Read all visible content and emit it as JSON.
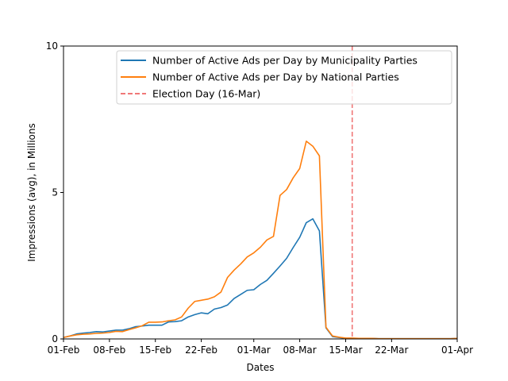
{
  "chart_data": {
    "type": "line",
    "title": "",
    "xlabel": "Dates",
    "ylabel": "Impressions (avg), in Millions",
    "xlim": [
      "2024-02-01",
      "2024-04-01"
    ],
    "ylim": [
      0,
      10
    ],
    "x_ticks": [
      "01-Feb",
      "08-Feb",
      "15-Feb",
      "22-Feb",
      "01-Mar",
      "08-Mar",
      "15-Mar",
      "22-Mar",
      "01-Apr"
    ],
    "y_ticks": [
      "0",
      "5",
      "10"
    ],
    "grid": false,
    "legend_position": "top-right",
    "x": [
      "2024-02-01",
      "2024-02-02",
      "2024-02-03",
      "2024-02-04",
      "2024-02-05",
      "2024-02-06",
      "2024-02-07",
      "2024-02-08",
      "2024-02-09",
      "2024-02-10",
      "2024-02-11",
      "2024-02-12",
      "2024-02-13",
      "2024-02-14",
      "2024-02-15",
      "2024-02-16",
      "2024-02-17",
      "2024-02-18",
      "2024-02-19",
      "2024-02-20",
      "2024-02-21",
      "2024-02-22",
      "2024-02-23",
      "2024-02-24",
      "2024-02-25",
      "2024-02-26",
      "2024-02-27",
      "2024-02-28",
      "2024-02-29",
      "2024-03-01",
      "2024-03-02",
      "2024-03-03",
      "2024-03-04",
      "2024-03-05",
      "2024-03-06",
      "2024-03-07",
      "2024-03-08",
      "2024-03-09",
      "2024-03-10",
      "2024-03-11",
      "2024-03-12",
      "2024-03-13",
      "2024-03-14",
      "2024-03-15",
      "2024-03-16",
      "2024-03-17",
      "2024-03-18",
      "2024-03-19",
      "2024-03-20",
      "2024-03-21",
      "2024-03-22",
      "2024-03-23",
      "2024-03-24",
      "2024-03-25",
      "2024-03-26",
      "2024-03-27",
      "2024-03-28",
      "2024-03-29",
      "2024-03-30",
      "2024-03-31",
      "2024-04-01"
    ],
    "series": [
      {
        "name": "Number of Active Ads per Day by Municipality Parties",
        "color": "#1f77b4",
        "values": [
          0.05,
          0.1,
          0.17,
          0.2,
          0.22,
          0.25,
          0.24,
          0.27,
          0.3,
          0.3,
          0.35,
          0.42,
          0.44,
          0.47,
          0.47,
          0.47,
          0.58,
          0.59,
          0.62,
          0.75,
          0.83,
          0.89,
          0.86,
          1.02,
          1.07,
          1.16,
          1.38,
          1.52,
          1.66,
          1.68,
          1.86,
          2.0,
          2.24,
          2.49,
          2.75,
          3.12,
          3.47,
          3.97,
          4.1,
          3.69,
          0.38,
          0.08,
          0.05,
          0.02,
          0.02,
          0.02,
          0.02,
          0.02,
          0.01,
          0.01,
          0.01,
          0.01,
          0.01,
          0.01,
          0.01,
          0.01,
          0.01,
          0.01,
          0.01,
          0.01,
          0.02
        ]
      },
      {
        "name": "Number of Active Ads per Day by National Parties",
        "color": "#ff7f0e",
        "values": [
          0.05,
          0.1,
          0.14,
          0.16,
          0.17,
          0.19,
          0.2,
          0.22,
          0.26,
          0.25,
          0.32,
          0.38,
          0.45,
          0.57,
          0.57,
          0.58,
          0.62,
          0.65,
          0.75,
          1.05,
          1.28,
          1.32,
          1.36,
          1.44,
          1.6,
          2.1,
          2.35,
          2.56,
          2.8,
          2.94,
          3.13,
          3.38,
          3.5,
          4.9,
          5.1,
          5.5,
          5.82,
          6.75,
          6.58,
          6.25,
          0.4,
          0.1,
          0.06,
          0.03,
          0.03,
          0.02,
          0.02,
          0.02,
          0.01,
          0.01,
          0.01,
          0.01,
          0.01,
          0.01,
          0.01,
          0.01,
          0.01,
          0.01,
          0.01,
          0.01,
          0.02
        ]
      }
    ],
    "vline": {
      "x": "2024-03-16",
      "name": "Election Day (16-Mar)",
      "color": "#f07878",
      "style": "dashed"
    }
  }
}
